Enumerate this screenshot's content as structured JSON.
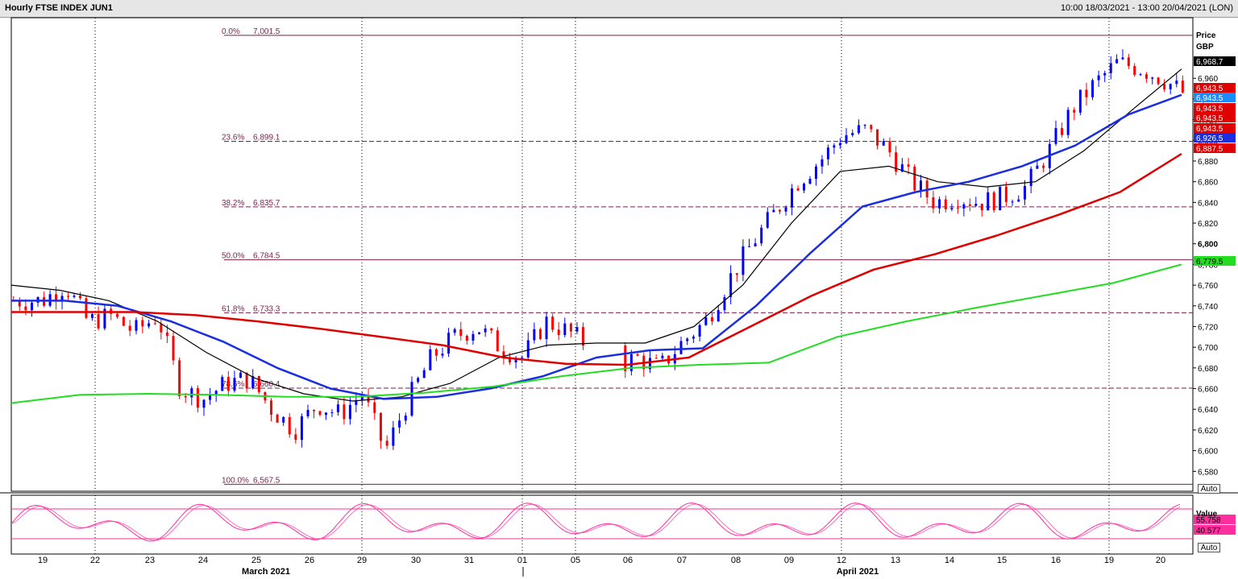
{
  "window": {
    "title": "Hourly FTSE INDEX JUN1",
    "range": "10:00 18/03/2021 - 13:00 20/04/2021 (LON)"
  },
  "price_axis": {
    "title_line1": "Price",
    "title_line2": "GBP",
    "auto_label": "Auto"
  },
  "osc_axis": {
    "title": "Value",
    "auto_label": "Auto"
  },
  "x_axis": {
    "day_labels": [
      "19",
      "22",
      "23",
      "24",
      "25",
      "26",
      "29",
      "30",
      "31",
      "01",
      "05",
      "06",
      "07",
      "08",
      "09",
      "12",
      "13",
      "14",
      "15",
      "16",
      "19",
      "20"
    ],
    "month_labels": [
      "March 2021",
      "April 2021"
    ]
  },
  "colors": {
    "candle_up": "#0000ff",
    "candle_down": "#ff0000",
    "ma_black": "#000000",
    "ma_blue": "#1a2ee0",
    "ma_red": "#e00000",
    "ma_green": "#22dd22",
    "fib": "#7a1f4a",
    "stoch": "#ff2f9f"
  },
  "chart_data": {
    "type": "candlestick",
    "title": "Hourly FTSE INDEX JUN1",
    "ylabel": "Price GBP",
    "ylim": [
      6567,
      7010
    ],
    "y_ticks": [
      6580,
      6600,
      6620,
      6640,
      6660,
      6680,
      6700,
      6720,
      6740,
      6760,
      6780,
      6800,
      6820,
      6840,
      6860,
      6880,
      6900,
      6920,
      6940,
      6960
    ],
    "y_tick_labels": [
      "6,580",
      "6,600",
      "6,620",
      "6,640",
      "6,660",
      "6,680",
      "6,700",
      "6,720",
      "6,740",
      "6,760",
      "6,780",
      "6,800",
      "6,820",
      "6,840",
      "6,860",
      "6,880",
      "6,900",
      "6,920",
      "6,940",
      "6,960"
    ],
    "x_categories": [
      "19",
      "22",
      "23",
      "24",
      "25",
      "26",
      "29",
      "30",
      "31",
      "01",
      "05",
      "06",
      "07",
      "08",
      "09",
      "12",
      "13",
      "14",
      "15",
      "16",
      "19",
      "20"
    ],
    "price_anchors": [
      [
        0,
        6745
      ],
      [
        1,
        6760
      ],
      [
        2,
        6725
      ],
      [
        3,
        6730
      ],
      [
        4,
        6715
      ],
      [
        5,
        6730
      ],
      [
        6,
        6660
      ],
      [
        7,
        6650
      ],
      [
        8,
        6665
      ],
      [
        9,
        6670
      ],
      [
        10,
        6640
      ],
      [
        11,
        6620
      ],
      [
        12,
        6645
      ],
      [
        13,
        6635
      ],
      [
        14,
        6655
      ],
      [
        15,
        6600
      ],
      [
        16,
        6650
      ],
      [
        17,
        6690
      ],
      [
        18,
        6710
      ],
      [
        19,
        6720
      ],
      [
        20,
        6700
      ],
      [
        21,
        6690
      ],
      [
        22,
        6725
      ],
      [
        23,
        6715
      ],
      [
        24,
        6700
      ],
      [
        25,
        6680
      ],
      [
        26,
        6690
      ],
      [
        27,
        6680
      ],
      [
        28,
        6705
      ],
      [
        29,
        6725
      ],
      [
        30,
        6765
      ],
      [
        31,
        6800
      ],
      [
        32,
        6830
      ],
      [
        33,
        6860
      ],
      [
        34,
        6880
      ],
      [
        35,
        6905
      ],
      [
        36,
        6910
      ],
      [
        37,
        6890
      ],
      [
        38,
        6860
      ],
      [
        39,
        6840
      ],
      [
        40,
        6845
      ],
      [
        41,
        6840
      ],
      [
        42,
        6845
      ],
      [
        43,
        6855
      ],
      [
        44,
        6890
      ],
      [
        45,
        6930
      ],
      [
        46,
        6955
      ],
      [
        47,
        6975
      ],
      [
        48,
        6970
      ],
      [
        49,
        6960
      ],
      [
        50,
        6945
      ]
    ],
    "moving_averages": [
      {
        "color": "#000000",
        "values": [
          6760,
          6755,
          6745,
          6725,
          6695,
          6670,
          6655,
          6648,
          6652,
          6665,
          6690,
          6702,
          6704,
          6704,
          6720,
          6760,
          6820,
          6870,
          6875,
          6860,
          6855,
          6860,
          6890,
          6930,
          6969
        ]
      },
      {
        "color": "#1a2ee0",
        "values": [
          6745,
          6745,
          6740,
          6725,
          6705,
          6680,
          6660,
          6650,
          6652,
          6660,
          6672,
          6690,
          6697,
          6699,
          6740,
          6790,
          6836,
          6850,
          6860,
          6875,
          6895,
          6925,
          6944
        ]
      },
      {
        "color": "#e00000",
        "values": [
          6734,
          6734,
          6734,
          6731,
          6725,
          6718,
          6710,
          6702,
          6690,
          6684,
          6683,
          6690,
          6720,
          6750,
          6775,
          6790,
          6808,
          6828,
          6850,
          6887
        ]
      },
      {
        "color": "#22dd22",
        "values": [
          6646,
          6654,
          6655,
          6654,
          6652,
          6652,
          6656,
          6662,
          6672,
          6680,
          6683,
          6685,
          6710,
          6725,
          6738,
          6750,
          6762,
          6780
        ]
      }
    ],
    "price_tags": [
      {
        "value": 6968.7,
        "label": "6,968.7",
        "color": "#000000"
      },
      {
        "value": 6943.5,
        "label": "6,943.5",
        "color": "#e00000"
      },
      {
        "value": 6943.5,
        "label": "6,943.5",
        "color": "#1a8cff"
      },
      {
        "value": 6943.5,
        "label": "6,943.5",
        "color": "#e00000"
      },
      {
        "value": 6943.5,
        "label": "6,943.5",
        "color": "#e00000"
      },
      {
        "value": 6943.5,
        "label": "6,943.5",
        "color": "#e00000"
      },
      {
        "value": 6926.5,
        "label": "6,926.5",
        "color": "#1a2ee0"
      },
      {
        "value": 6887.5,
        "label": "6,887.5",
        "color": "#e00000"
      },
      {
        "value": 6779.5,
        "label": "6,779.5",
        "color": "#22dd22"
      }
    ],
    "fibonacci": [
      {
        "pct": "0.0%",
        "value": 7001.5,
        "label": "7,001.5",
        "style": "solid"
      },
      {
        "pct": "23.6%",
        "value": 6899.1,
        "label": "6,899.1",
        "style": "dashed"
      },
      {
        "pct": "38.2%",
        "value": 6835.7,
        "label": "6,835.7",
        "style": "dashed"
      },
      {
        "pct": "50.0%",
        "value": 6784.5,
        "label": "6,784.5",
        "style": "solid"
      },
      {
        "pct": "61.8%",
        "value": 6733.3,
        "label": "6,733.3",
        "style": "dashed"
      },
      {
        "pct": "78.6%",
        "value": 6660.4,
        "label": "6,660.4",
        "style": "dashed"
      },
      {
        "pct": "100.0%",
        "value": 6567.5,
        "label": "6,567.5",
        "style": "solid"
      }
    ],
    "oscillator": {
      "ylim": [
        0,
        100
      ],
      "levels": [
        80,
        20
      ],
      "tags": [
        {
          "value": 55.758,
          "label": "55.758"
        },
        {
          "value": 40.577,
          "label": "40.577"
        }
      ]
    }
  }
}
